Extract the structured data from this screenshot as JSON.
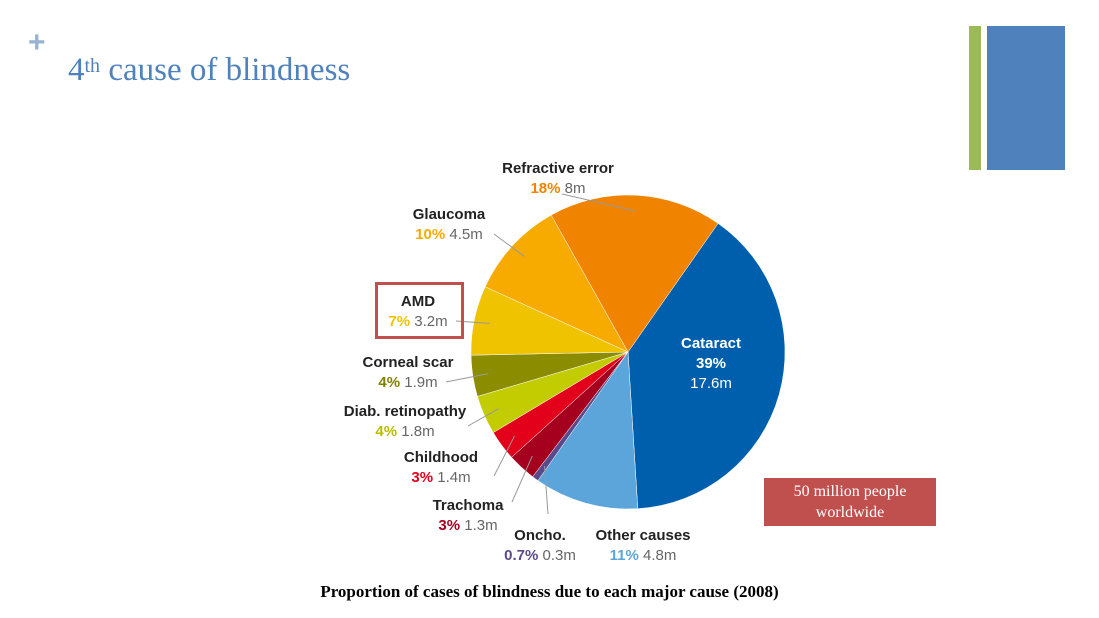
{
  "slide": {
    "plus_symbol": "+",
    "title_number": "4",
    "title_sup": "th",
    "title_rest": " cause of blindness",
    "callout_line1": "50 million people",
    "callout_line2": "worldwide",
    "caption": "Proportion of cases of blindness due to each major cause (2008)"
  },
  "colors": {
    "title": "#4f81bd",
    "accent_green": "#9bbb59",
    "accent_blue": "#4f81bd",
    "callout": "#c0504d",
    "highlight_box": "#c0504d"
  },
  "chart_data": {
    "type": "pie",
    "title": "Proportion of cases of blindness due to each major cause (2008)",
    "highlighted": "AMD",
    "slices": [
      {
        "label": "Cataract",
        "pct": "39%",
        "value_text": "17.6m",
        "value": 17.6,
        "color": "#005fad"
      },
      {
        "label": "Other causes",
        "pct": "11%",
        "value_text": "4.8m",
        "value": 4.8,
        "color": "#5ba5db"
      },
      {
        "label": "Oncho.",
        "pct": "0.7%",
        "value_text": "0.3m",
        "value": 0.3,
        "color": "#5b4a8b"
      },
      {
        "label": "Trachoma",
        "pct": "3%",
        "value_text": "1.3m",
        "value": 1.3,
        "color": "#a5001e"
      },
      {
        "label": "Childhood",
        "pct": "3%",
        "value_text": "1.4m",
        "value": 1.4,
        "color": "#e3001b"
      },
      {
        "label": "Diab. retinopathy",
        "pct": "4%",
        "value_text": "1.8m",
        "value": 1.8,
        "color": "#c3cc00"
      },
      {
        "label": "Corneal scar",
        "pct": "4%",
        "value_text": "1.9m",
        "value": 1.9,
        "color": "#8c8c00"
      },
      {
        "label": "AMD",
        "pct": "7%",
        "value_text": "3.2m",
        "value": 3.2,
        "color": "#f0c300"
      },
      {
        "label": "Glaucoma",
        "pct": "10%",
        "value_text": "4.5m",
        "value": 4.5,
        "color": "#f7aa00"
      },
      {
        "label": "Refractive error",
        "pct": "18%",
        "value_text": "8m",
        "value": 8.0,
        "color": "#f08300"
      }
    ]
  }
}
